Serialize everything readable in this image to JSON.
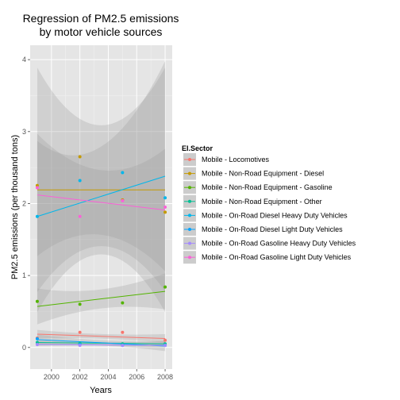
{
  "chart_data": {
    "type": "scatter",
    "title_lines": [
      "Regression of PM2.5 emissions",
      "by motor vehicle sources"
    ],
    "xlabel": "Years",
    "ylabel": "PM2.5 emissions (per thousand tons)",
    "xlim": [
      1998.5,
      2008.5
    ],
    "ylim": [
      -0.3,
      4.2
    ],
    "x_ticks": [
      2000,
      2002,
      2004,
      2006,
      2008
    ],
    "x_tick_labels": [
      "2000",
      "2002",
      "2004",
      "2006",
      "2008"
    ],
    "y_ticks": [
      0,
      1,
      2,
      3,
      4
    ],
    "y_tick_labels": [
      "0",
      "1",
      "2",
      "3",
      "4"
    ],
    "grid": true,
    "legend": {
      "title": "EI.Sector",
      "placement": "right"
    },
    "series": [
      {
        "name": "Mobile - Locomotives",
        "color": "#F8766D",
        "x": [
          1999,
          2002,
          2005,
          2008
        ],
        "y": [
          0.13,
          0.21,
          0.21,
          0.1
        ],
        "fit": [
          0.185,
          0.125
        ],
        "band": [
          0.06,
          0.06
        ]
      },
      {
        "name": "Mobile - Non-Road Equipment - Diesel",
        "color": "#C49A00",
        "x": [
          1999,
          2002,
          2005,
          2008
        ],
        "y": [
          2.25,
          2.65,
          2.05,
          1.88
        ],
        "fit": [
          2.19,
          2.19
        ],
        "band": [
          1.7,
          1.7
        ]
      },
      {
        "name": "Mobile - Non-Road Equipment - Gasoline",
        "color": "#53B400",
        "x": [
          1999,
          2002,
          2005,
          2008
        ],
        "y": [
          0.64,
          0.6,
          0.62,
          0.84
        ],
        "fit": [
          0.57,
          0.78
        ],
        "band": [
          0.25,
          0.25
        ]
      },
      {
        "name": "Mobile - Non-Road Equipment - Other",
        "color": "#00C094",
        "x": [
          1999,
          2002,
          2005,
          2008
        ],
        "y": [
          0.07,
          0.06,
          0.05,
          0.05
        ],
        "fit": [
          0.07,
          0.05
        ],
        "band": [
          0.03,
          0.03
        ]
      },
      {
        "name": "Mobile - On-Road Diesel Heavy Duty Vehicles",
        "color": "#00B6EB",
        "x": [
          1999,
          2002,
          2005,
          2008
        ],
        "y": [
          1.82,
          2.32,
          2.43,
          2.08
        ],
        "fit": [
          1.82,
          2.38
        ],
        "band": [
          1.05,
          1.6
        ]
      },
      {
        "name": "Mobile - On-Road Diesel Light Duty Vehicles",
        "color": "#06A4FF",
        "x": [
          1999,
          2002,
          2005,
          2008
        ],
        "y": [
          0.12,
          0.04,
          0.03,
          0.03
        ],
        "fit": [
          0.11,
          0.02
        ],
        "band": [
          0.07,
          0.07
        ]
      },
      {
        "name": "Mobile - On-Road Gasoline Heavy Duty Vehicles",
        "color": "#A58AFF",
        "x": [
          1999,
          2002,
          2005,
          2008
        ],
        "y": [
          0.04,
          0.03,
          0.03,
          0.03
        ],
        "fit": [
          0.04,
          0.03
        ],
        "band": [
          0.02,
          0.02
        ]
      },
      {
        "name": "Mobile - On-Road Gasoline Light Duty Vehicles",
        "color": "#FB61D7",
        "x": [
          1999,
          2002,
          2005,
          2008
        ],
        "y": [
          2.22,
          1.82,
          2.04,
          1.95
        ],
        "fit": [
          2.12,
          1.91
        ],
        "band": [
          0.85,
          0.85
        ]
      }
    ]
  }
}
